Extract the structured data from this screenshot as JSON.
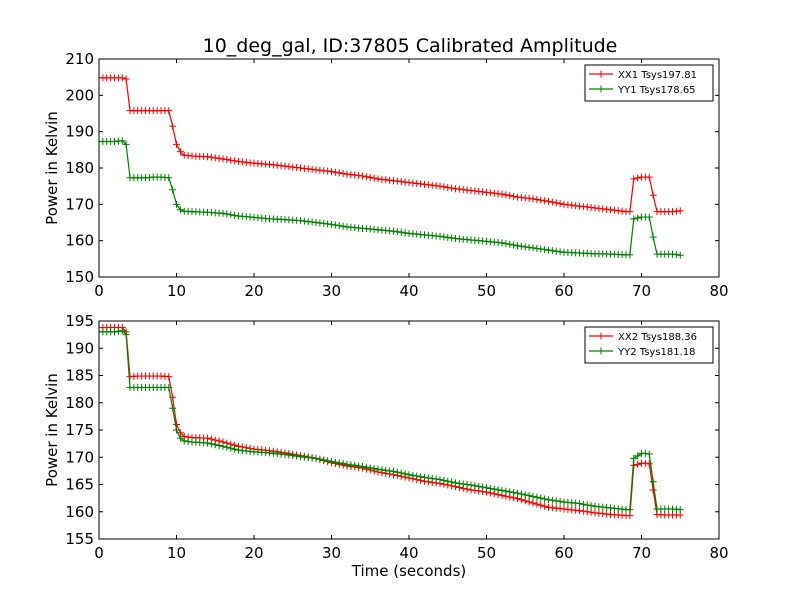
{
  "title": "10_deg_gal, ID:37805 Calibrated Amplitude",
  "chart_data": [
    {
      "type": "line",
      "title": "10_deg_gal, ID:37805 Calibrated Amplitude",
      "xlabel": "",
      "ylabel": "Power in Kelvin",
      "xlim": [
        0,
        80
      ],
      "ylim": [
        150,
        210
      ],
      "xticks": [
        "0",
        "10",
        "20",
        "30",
        "40",
        "50",
        "60",
        "70",
        "80"
      ],
      "yticks": [
        "150",
        "160",
        "170",
        "180",
        "190",
        "200",
        "210"
      ],
      "legend": "top-right",
      "grid": false,
      "series": [
        {
          "name": "XX1 Tsys197.81",
          "color": "#ff0000",
          "x": [
            0,
            1,
            2,
            3,
            3.5,
            4,
            5,
            6,
            7,
            8,
            9,
            9.5,
            10,
            10.5,
            11,
            12,
            14,
            16,
            18,
            20,
            22,
            24,
            26,
            28,
            30,
            32,
            34,
            36,
            38,
            40,
            42,
            44,
            46,
            48,
            50,
            52,
            54,
            56,
            58,
            60,
            62,
            64,
            66,
            68,
            68.5,
            69,
            70,
            70.5,
            71,
            71.5,
            72,
            73,
            74,
            75
          ],
          "y": [
            204.8,
            204.8,
            204.8,
            204.8,
            204.5,
            195.8,
            195.8,
            195.8,
            195.8,
            195.8,
            195.8,
            191.5,
            186.5,
            184.5,
            183.5,
            183.3,
            183.1,
            182.5,
            181.8,
            181.3,
            181.0,
            180.5,
            180.0,
            179.5,
            179.0,
            178.3,
            177.8,
            177.0,
            176.5,
            176.0,
            175.5,
            175.0,
            174.3,
            173.8,
            173.3,
            172.8,
            172.0,
            171.5,
            170.8,
            170.0,
            169.5,
            169.0,
            168.5,
            168.0,
            168.0,
            177.0,
            177.5,
            177.5,
            177.5,
            172.5,
            168.0,
            168.0,
            168.0,
            168.2
          ]
        },
        {
          "name": "YY1 Tsys178.65",
          "color": "#008000",
          "x": [
            0,
            1,
            2,
            3,
            3.5,
            4,
            5,
            6,
            7,
            8,
            9,
            9.5,
            10,
            10.5,
            11,
            12,
            14,
            16,
            18,
            20,
            22,
            24,
            26,
            28,
            30,
            32,
            34,
            36,
            38,
            40,
            42,
            44,
            46,
            48,
            50,
            52,
            54,
            56,
            58,
            60,
            62,
            64,
            66,
            68,
            68.5,
            69,
            70,
            70.5,
            71,
            71.5,
            72,
            73,
            74,
            75
          ],
          "y": [
            187.3,
            187.3,
            187.3,
            187.5,
            186.5,
            177.3,
            177.3,
            177.3,
            177.5,
            177.5,
            177.3,
            174.0,
            170.0,
            168.5,
            168.1,
            168.0,
            167.8,
            167.5,
            166.8,
            166.4,
            166.0,
            165.8,
            165.5,
            165.0,
            164.5,
            163.8,
            163.4,
            163.0,
            162.6,
            162.0,
            161.6,
            161.2,
            160.6,
            160.2,
            159.8,
            159.4,
            158.6,
            158.0,
            157.4,
            156.8,
            156.6,
            156.4,
            156.3,
            156.1,
            156.1,
            166.0,
            166.5,
            166.5,
            166.5,
            161.0,
            156.3,
            156.3,
            156.3,
            156.0
          ]
        }
      ]
    },
    {
      "type": "line",
      "title": "",
      "xlabel": "Time (seconds)",
      "ylabel": "Power in Kelvin",
      "xlim": [
        0,
        80
      ],
      "ylim": [
        155,
        195
      ],
      "xticks": [
        "0",
        "10",
        "20",
        "30",
        "40",
        "50",
        "60",
        "70",
        "80"
      ],
      "yticks": [
        "155",
        "160",
        "165",
        "170",
        "175",
        "180",
        "185",
        "190",
        "195"
      ],
      "legend": "top-right",
      "grid": false,
      "series": [
        {
          "name": "XX2 Tsys188.36",
          "color": "#ff0000",
          "x": [
            0,
            1,
            2,
            3,
            3.5,
            4,
            5,
            6,
            7,
            8,
            9,
            9.5,
            10,
            10.5,
            11,
            12,
            14,
            16,
            18,
            20,
            22,
            24,
            26,
            28,
            30,
            32,
            34,
            36,
            38,
            40,
            42,
            44,
            46,
            48,
            50,
            52,
            54,
            56,
            58,
            60,
            62,
            64,
            66,
            68,
            68.5,
            69,
            70,
            70.5,
            71,
            71.5,
            72,
            73,
            74,
            75
          ],
          "y": [
            193.8,
            193.8,
            193.8,
            193.8,
            193.0,
            184.8,
            184.9,
            184.9,
            184.9,
            184.9,
            184.8,
            181.0,
            176.0,
            174.5,
            173.8,
            173.6,
            173.5,
            172.8,
            172.0,
            171.5,
            171.2,
            170.8,
            170.3,
            169.8,
            169.0,
            168.4,
            168.0,
            167.3,
            166.8,
            166.2,
            165.6,
            165.2,
            164.6,
            164.0,
            163.6,
            163.0,
            162.4,
            161.6,
            160.8,
            160.5,
            160.2,
            159.8,
            159.5,
            159.3,
            159.3,
            168.5,
            168.9,
            168.9,
            168.8,
            164.0,
            159.5,
            159.4,
            159.4,
            159.4
          ]
        },
        {
          "name": "YY2 Tsys181.18",
          "color": "#008000",
          "x": [
            0,
            1,
            2,
            3,
            3.5,
            4,
            5,
            6,
            7,
            8,
            9,
            9.5,
            10,
            10.5,
            11,
            12,
            14,
            16,
            18,
            20,
            22,
            24,
            26,
            28,
            30,
            32,
            34,
            36,
            38,
            40,
            42,
            44,
            46,
            48,
            50,
            52,
            54,
            56,
            58,
            60,
            62,
            64,
            66,
            68,
            68.5,
            69,
            70,
            70.5,
            71,
            71.5,
            72,
            73,
            74,
            75
          ],
          "y": [
            193.0,
            193.0,
            193.0,
            193.2,
            192.5,
            182.8,
            182.8,
            182.8,
            182.8,
            182.8,
            182.8,
            179.0,
            175.0,
            173.5,
            173.0,
            172.8,
            172.6,
            172.0,
            171.3,
            171.0,
            170.8,
            170.5,
            170.1,
            169.8,
            169.2,
            168.7,
            168.3,
            167.8,
            167.4,
            166.8,
            166.3,
            165.9,
            165.3,
            164.9,
            164.4,
            163.9,
            163.4,
            162.8,
            162.2,
            161.8,
            161.5,
            161.0,
            160.7,
            160.4,
            160.4,
            169.8,
            170.7,
            170.7,
            170.6,
            165.5,
            160.5,
            160.5,
            160.5,
            160.4
          ]
        }
      ]
    }
  ]
}
